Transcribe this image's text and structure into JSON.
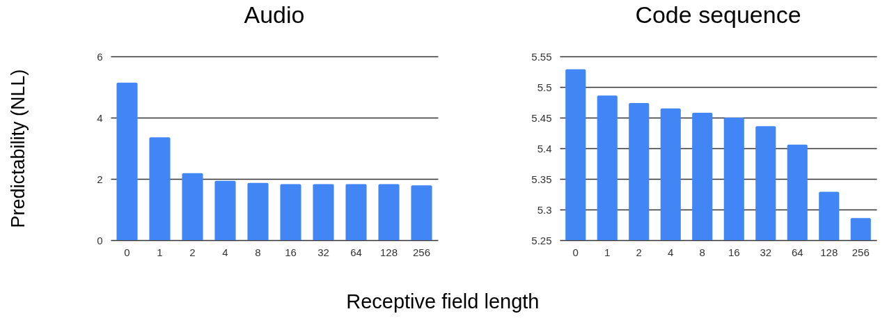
{
  "chart_data": [
    {
      "type": "bar",
      "title": "Audio",
      "ylabel": "Predictability (NLL)",
      "xlabel": "Receptive field length",
      "categories": [
        "0",
        "1",
        "2",
        "4",
        "8",
        "16",
        "32",
        "64",
        "128",
        "256"
      ],
      "color": "#4285f4",
      "values": [
        5.14,
        3.36,
        2.19,
        1.94,
        1.87,
        1.83,
        1.83,
        1.83,
        1.83,
        1.79
      ],
      "ylim": [
        0,
        6
      ],
      "yticks": [
        0,
        2,
        4,
        6
      ],
      "grid": "y"
    },
    {
      "type": "bar",
      "title": "Code sequence",
      "categories": [
        "0",
        "1",
        "2",
        "4",
        "8",
        "16",
        "32",
        "64",
        "128",
        "256"
      ],
      "color": "#4285f4",
      "values": [
        5.529,
        5.486,
        5.474,
        5.465,
        5.458,
        5.45,
        5.436,
        5.406,
        5.329,
        5.286
      ],
      "ylim": [
        5.25,
        5.55
      ],
      "yticks": [
        5.25,
        5.3,
        5.35,
        5.4,
        5.45,
        5.5,
        5.55
      ],
      "grid": "y"
    }
  ]
}
